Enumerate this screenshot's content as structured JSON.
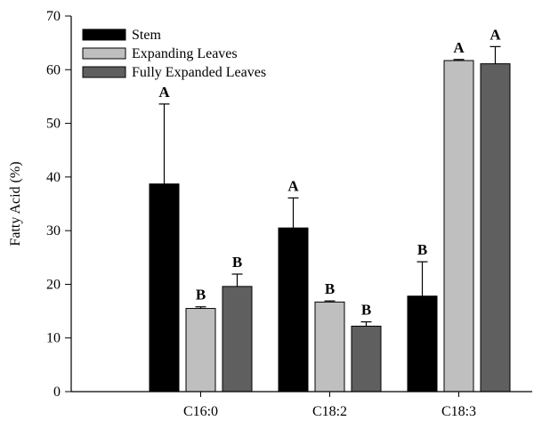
{
  "chart_data": {
    "type": "bar",
    "title": "",
    "xlabel": "",
    "ylabel": "Fatty Acid (%)",
    "ylim": [
      0,
      70
    ],
    "yticks": [
      0,
      10,
      20,
      30,
      40,
      50,
      60,
      70
    ],
    "grid": false,
    "legend_position": "top-left",
    "categories": [
      "C16:0",
      "C18:2",
      "C18:3"
    ],
    "series": [
      {
        "name": "Stem",
        "color": "#000000",
        "values": [
          38.7,
          30.5,
          17.8
        ],
        "errors": [
          14.9,
          5.6,
          6.4
        ],
        "labels": [
          "A",
          "A",
          "B"
        ]
      },
      {
        "name": "Expanding Leaves",
        "color": "#bfbfbf",
        "values": [
          15.5,
          16.7,
          61.7
        ],
        "errors": [
          0.3,
          0.2,
          0.2
        ],
        "labels": [
          "B",
          "B",
          "A"
        ]
      },
      {
        "name": "Fully Expanded Leaves",
        "color": "#5f5f5f",
        "values": [
          19.6,
          12.2,
          61.1
        ],
        "errors": [
          2.3,
          0.8,
          3.2
        ],
        "labels": [
          "B",
          "B",
          "A"
        ]
      }
    ]
  }
}
